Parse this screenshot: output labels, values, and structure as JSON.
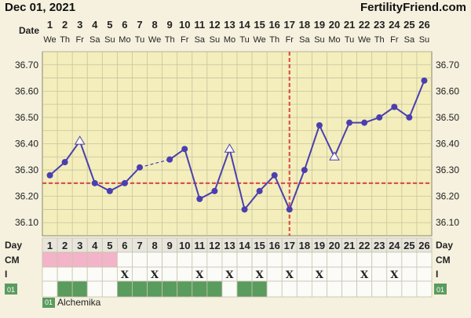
{
  "header": {
    "date": "Dec 01, 2021",
    "brand": "FertilityFriend.com"
  },
  "labels": {
    "date": "Date",
    "day": "Day",
    "cm": "CM",
    "intercourse": "I",
    "custom": "01"
  },
  "legend": {
    "code": "01",
    "label": "Alchemika"
  },
  "colors": {
    "background": "#f5f1de",
    "plot_bg": "#f3eebc",
    "grid": "#c9c39a",
    "line": "#4b3fb0",
    "coverline": "#d9534f",
    "cm": "#f3b3c8",
    "custom": "#5a9b5e"
  },
  "chart_data": {
    "type": "line",
    "x": [
      1,
      2,
      3,
      4,
      5,
      6,
      7,
      8,
      9,
      10,
      11,
      12,
      13,
      14,
      15,
      16,
      17,
      18,
      19,
      20,
      21,
      22,
      23,
      24,
      25,
      26
    ],
    "weekdays": [
      "We",
      "Th",
      "Fr",
      "Sa",
      "Su",
      "Mo",
      "Tu",
      "We",
      "Th",
      "Fr",
      "Sa",
      "Su",
      "Mo",
      "Tu",
      "We",
      "Th",
      "Fr",
      "Sa",
      "Su",
      "Mo",
      "Tu",
      "We",
      "Th",
      "Fr",
      "Sa",
      "Su"
    ],
    "y": [
      36.28,
      36.33,
      36.41,
      36.25,
      36.22,
      36.25,
      36.31,
      null,
      36.34,
      36.38,
      36.19,
      36.22,
      36.38,
      36.15,
      36.22,
      36.28,
      36.15,
      36.3,
      36.47,
      36.35,
      36.48,
      36.48,
      36.5,
      36.54,
      36.5,
      36.64
    ],
    "open_markers": [
      3,
      13,
      20
    ],
    "dashed_segments": [
      [
        7,
        9
      ]
    ],
    "ylim": [
      36.05,
      36.75
    ],
    "yticks": [
      36.1,
      36.2,
      36.3,
      36.4,
      36.5,
      36.6,
      36.7
    ],
    "coverline": 36.25,
    "ovulation_day": 17,
    "cm_days": [
      1,
      2,
      3,
      4,
      5
    ],
    "intercourse_days": [
      6,
      8,
      11,
      13,
      15,
      17,
      19,
      22,
      24
    ],
    "intercourse_mark": "X",
    "custom_days": [
      2,
      3,
      6,
      7,
      8,
      9,
      10,
      11,
      12,
      14,
      15
    ]
  }
}
